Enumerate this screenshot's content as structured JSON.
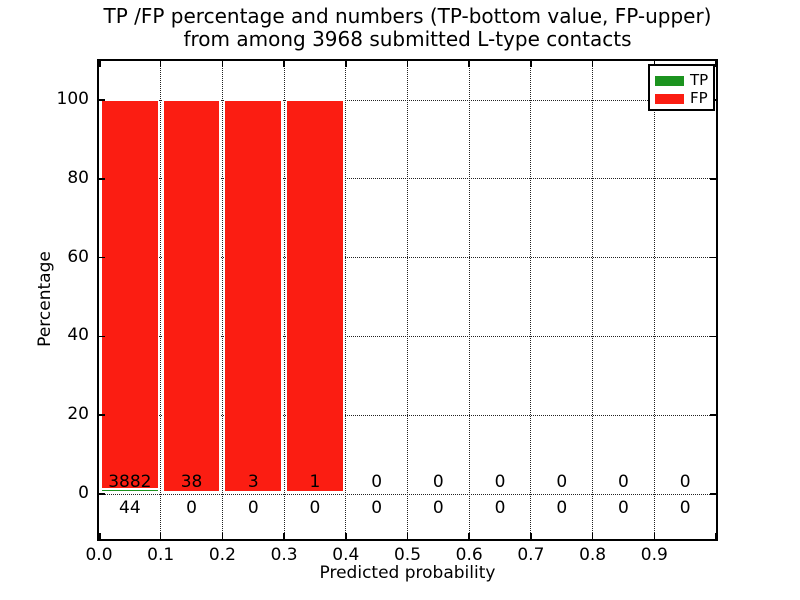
{
  "figure": {
    "title_line1": "TP /FP percentage and numbers (TP-bottom value, FP-upper)",
    "title_line2": "from among 3968 submitted L-type contacts"
  },
  "axes": {
    "xlabel": "Predicted probability",
    "ylabel": "Percentage",
    "x_tick_labels": [
      "0.0",
      "0.1",
      "0.2",
      "0.3",
      "0.4",
      "0.5",
      "0.6",
      "0.7",
      "0.8",
      "0.9"
    ],
    "y_tick_labels": [
      "0",
      "20",
      "40",
      "60",
      "80",
      "100"
    ]
  },
  "legend": {
    "position": "upper right",
    "items": [
      {
        "label": "TP",
        "color": "#1c931f"
      },
      {
        "label": "FP",
        "color": "#fb1d12"
      }
    ]
  },
  "chart_data": {
    "type": "bar",
    "stacked": true,
    "title": "TP /FP percentage and numbers (TP-bottom value, FP-upper) from among 3968 submitted L-type contacts",
    "xlabel": "Predicted probability",
    "ylabel": "Percentage",
    "total_submitted": 3968,
    "bin_edges": [
      0.0,
      0.1,
      0.2,
      0.3,
      0.4,
      0.5,
      0.6,
      0.7,
      0.8,
      0.9,
      1.0
    ],
    "categories": [
      "0.0-0.1",
      "0.1-0.2",
      "0.2-0.3",
      "0.3-0.4",
      "0.4-0.5",
      "0.5-0.6",
      "0.6-0.7",
      "0.7-0.8",
      "0.8-0.9",
      "0.9-1.0"
    ],
    "series": [
      {
        "name": "TP",
        "color": "#1c931f",
        "counts": [
          44,
          0,
          0,
          0,
          0,
          0,
          0,
          0,
          0,
          0
        ]
      },
      {
        "name": "FP",
        "color": "#fb1d12",
        "counts": [
          3882,
          38,
          3,
          1,
          0,
          0,
          0,
          0,
          0,
          0
        ]
      }
    ],
    "bar_percent_totals": [
      100,
      100,
      100,
      100,
      0,
      0,
      0,
      0,
      0,
      0
    ],
    "note": "bars show percentage of each bin total, TP at bottom, FP stacked above; counts annotated (FP above axis, TP below)",
    "x_tick_values": [
      0.0,
      0.1,
      0.2,
      0.3,
      0.4,
      0.5,
      0.6,
      0.7,
      0.8,
      0.9,
      1.0
    ],
    "y_tick_values": [
      0,
      20,
      40,
      60,
      80,
      100
    ],
    "xlim": [
      0.0,
      1.0
    ],
    "ylim": [
      -11,
      110
    ],
    "grid": "dotted",
    "legend_position": "upper right"
  }
}
